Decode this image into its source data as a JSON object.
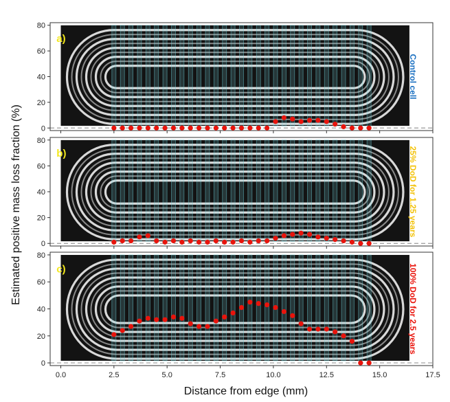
{
  "figure": {
    "ylabel": "Estimated positive mass loss fraction (%)",
    "xlabel": "Distance from edge (mm)",
    "x_ticks": [
      "0.0",
      "2.5",
      "5.0",
      "7.5",
      "10.0",
      "12.5",
      "15.0",
      "17.5"
    ],
    "y_ticks": [
      "0",
      "20",
      "40",
      "60",
      "80"
    ]
  },
  "chart_data": [
    {
      "type": "scatter",
      "panel_label": "a)",
      "side_label": "Control cell",
      "side_label_color": "#1a6fc0",
      "xlim": [
        -0.5,
        17.5
      ],
      "ylim": [
        -2,
        82
      ],
      "grid": false,
      "marker_color": "#e8140c",
      "x": [
        2.5,
        2.9,
        3.3,
        3.7,
        4.1,
        4.5,
        4.9,
        5.3,
        5.7,
        6.1,
        6.5,
        6.9,
        7.3,
        7.7,
        8.1,
        8.5,
        8.9,
        9.3,
        9.7,
        10.1,
        10.5,
        10.9,
        11.3,
        11.7,
        12.1,
        12.5,
        12.9,
        13.3,
        13.7,
        14.1,
        14.5
      ],
      "y": [
        0,
        0,
        0,
        0,
        0,
        0,
        0,
        0,
        0,
        0,
        0,
        0,
        0,
        0,
        0,
        0,
        0,
        0,
        0,
        5,
        8,
        7,
        5,
        6,
        6,
        5,
        3,
        1,
        0,
        0,
        0
      ],
      "reference_line_y": 0
    },
    {
      "type": "scatter",
      "panel_label": "b)",
      "side_label": "25% DoD for 1.25 years",
      "side_label_color": "#f2c20c",
      "xlim": [
        -0.5,
        17.5
      ],
      "ylim": [
        -2,
        82
      ],
      "grid": false,
      "marker_color": "#e8140c",
      "x": [
        2.5,
        2.9,
        3.3,
        3.7,
        4.1,
        4.5,
        4.9,
        5.3,
        5.7,
        6.1,
        6.5,
        6.9,
        7.3,
        7.7,
        8.1,
        8.5,
        8.9,
        9.3,
        9.7,
        10.1,
        10.5,
        10.9,
        11.3,
        11.7,
        12.1,
        12.5,
        12.9,
        13.3,
        13.7,
        14.1,
        14.5
      ],
      "y": [
        1,
        2,
        2,
        5,
        6,
        2,
        1,
        2,
        1,
        2,
        1,
        1,
        2,
        1,
        1,
        2,
        1,
        2,
        2,
        4,
        6,
        7,
        8,
        7,
        5,
        4,
        3,
        2,
        1,
        0,
        0
      ],
      "reference_line_y": 0
    },
    {
      "type": "scatter",
      "panel_label": "c)",
      "side_label": "100% DoD for 2.5 years",
      "side_label_color": "#e8140c",
      "xlim": [
        -0.5,
        17.5
      ],
      "ylim": [
        -2,
        82
      ],
      "grid": false,
      "marker_color": "#e8140c",
      "x": [
        2.5,
        2.9,
        3.3,
        3.7,
        4.1,
        4.5,
        4.9,
        5.3,
        5.7,
        6.1,
        6.5,
        6.9,
        7.3,
        7.7,
        8.1,
        8.5,
        8.9,
        9.3,
        9.7,
        10.1,
        10.5,
        10.9,
        11.3,
        11.7,
        12.1,
        12.5,
        12.9,
        13.3,
        13.7,
        14.1,
        14.5
      ],
      "y": [
        21,
        24,
        27,
        31,
        33,
        32,
        32,
        34,
        33,
        29,
        27,
        27,
        31,
        34,
        37,
        41,
        45,
        44,
        43,
        41,
        38,
        35,
        29,
        25,
        25,
        25,
        23,
        20,
        16,
        0,
        0
      ],
      "reference_line_y": 0
    }
  ]
}
